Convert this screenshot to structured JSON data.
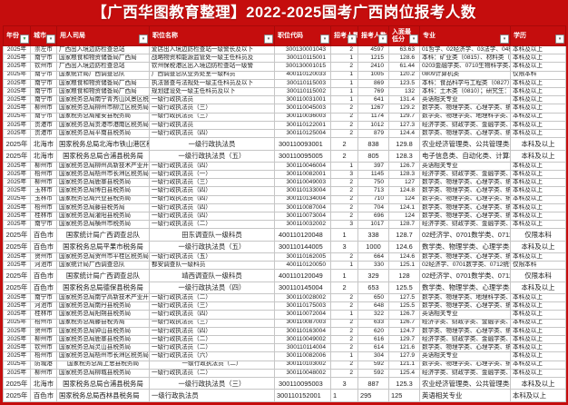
{
  "title": "【广西华图教育整理】2022-2025国考广西岗位报考人数",
  "colors": {
    "accent_red": "#c50d0d",
    "filter_funnel_green": "#2e9e4f",
    "grid_line": "#c6c6c6"
  },
  "table": {
    "columns": [
      {
        "key": "year",
        "label": "年份",
        "filtered": true
      },
      {
        "key": "city",
        "label": "城市",
        "filtered": false
      },
      {
        "key": "dept",
        "label": "用人司局",
        "filtered": false
      },
      {
        "key": "pos",
        "label": "职位名称",
        "filtered": false
      },
      {
        "key": "code",
        "label": "职位代码",
        "filtered": false
      },
      {
        "key": "num",
        "label": "招考人数",
        "filtered": false
      },
      {
        "key": "app",
        "label": "报考人数",
        "filtered": false
      },
      {
        "key": "score",
        "label": "入面最低分",
        "filtered": false
      },
      {
        "key": "major",
        "label": "专业",
        "filtered": false
      },
      {
        "key": "edu",
        "label": "学历",
        "filtered": false
      }
    ],
    "rows": [
      {
        "year": "2025年",
        "city": "崇左市",
        "dept": "广西出入境边防检查总站",
        "pos": "爱店出入境边防检查站一级警长及以下",
        "code": "300130001043",
        "num": "2",
        "app": "4597",
        "score": "63.63",
        "major": "01哲学、02经济学、03法学、04教",
        "edu": "本科及以上",
        "v": "a"
      },
      {
        "year": "2025年",
        "city": "南宁市",
        "dept": "国家粮食和物资储备局广西局",
        "pos": "战略物资和能源监管处一级主任科员及",
        "code": "300110115001",
        "num": "1",
        "app": "1215",
        "score": "128.6",
        "major": "本科：矿业类（0815）、材料类（",
        "edu": "本科及以上",
        "v": "a"
      },
      {
        "year": "2025年",
        "city": "钦州市",
        "dept": "广西出入境边防检查总站",
        "pos": "钦州保税港区出入境边防检查站一级警",
        "code": "300130001015",
        "num": "2",
        "app": "2410",
        "score": "61.44",
        "major": "0203金融学类、0710生物科学类、",
        "edu": "本科及以上",
        "v": "a"
      },
      {
        "year": "2025年",
        "city": "南宁市",
        "dept": "国家统计局广西调查总队",
        "pos": "广西调查总队业务处室一级科员",
        "code": "400110120033",
        "num": "1",
        "app": "1005",
        "score": "120.2",
        "major": "0809计算机类",
        "edu": "仅限本科",
        "v": "a"
      },
      {
        "year": "2025年",
        "city": "南宁市",
        "dept": "国家粮食和物资储备局广西局",
        "pos": "执法督查与法规处一级主任科员及以下",
        "code": "300110115003",
        "num": "1",
        "app": "869",
        "score": "123.5",
        "major": "本科：食品科学与工程类（0827）",
        "edu": "本科及以上",
        "v": "a"
      },
      {
        "year": "2025年",
        "city": "南宁市",
        "dept": "国家粮食和物资储备局广西局",
        "pos": "规划建设处一级主任科员及以下",
        "code": "300110115002",
        "num": "1",
        "app": "769",
        "score": "132",
        "major": "本科：土木类（0810）；研究生：",
        "edu": "本科及以上",
        "v": "a"
      },
      {
        "year": "2025年",
        "city": "南宁市",
        "dept": "国家税务总局南宁青秀山风景区税务局",
        "pos": "一级行政执法员",
        "code": "300110031001",
        "num": "1",
        "app": "641",
        "score": "131.4",
        "major": "英语相关专业",
        "edu": "本科及以上",
        "v": "a"
      },
      {
        "year": "2025年",
        "city": "柳州市",
        "dept": "国家税务总局柳州市柳江区税务局",
        "pos": "一级行政执法员（三）",
        "code": "300110045003",
        "num": "2",
        "app": "1267",
        "score": "129.2",
        "major": "数学类、物理学类、心理学类、统",
        "edu": "本科及以上",
        "v": "a"
      },
      {
        "year": "2025年",
        "city": "南宁市",
        "dept": "国家税务总局隆安县税务局",
        "pos": "一级行政执法员（三）",
        "code": "300110036003",
        "num": "2",
        "app": "1174",
        "score": "129.7",
        "major": "数学类、物理学类、地理科学类、",
        "edu": "本科及以上",
        "v": "a"
      },
      {
        "year": "2025年",
        "city": "贵港市",
        "dept": "国家税务总局贵港市港南区税务局",
        "pos": "一级行政执法员",
        "code": "300110122001",
        "num": "2",
        "app": "1012",
        "score": "127.3",
        "major": "经济学类、财政学类、金融学类、",
        "edu": "本科及以上",
        "v": "a"
      },
      {
        "year": "2025年",
        "city": "贵港市",
        "dept": "国家税务总局平南县税务局",
        "pos": "一级行政执法员（四）",
        "code": "300110125004",
        "num": "2",
        "app": "879",
        "score": "124.4",
        "major": "数学类、物理学类、心理学类、统",
        "edu": "本科及以上",
        "v": "a"
      },
      {
        "year": "2025年",
        "city": "北海市",
        "dept": "国家税务总局北海市铁山港区税务局",
        "pos": "一级行政执法员",
        "code": "300110093001",
        "num": "2",
        "app": "838",
        "score": "129.8",
        "major": "农业经济管理类、公共管理类、图",
        "edu": "本科及以上",
        "v": "b"
      },
      {
        "year": "2025年",
        "city": "北海市",
        "dept": "国家税务总局合浦县税务局",
        "pos": "一级行政执法员（五）",
        "code": "300110095005",
        "num": "2",
        "app": "805",
        "score": "128.3",
        "major": "电子信息类、自动化类、计算机类、",
        "edu": "本科及以上",
        "v": "b"
      },
      {
        "year": "2025年",
        "city": "柳州市",
        "dept": "国家税务总局柳州高新技术产业开发区税务局",
        "pos": "一级行政执法员（四）",
        "code": "300110046004",
        "num": "1",
        "app": "397",
        "score": "126.7",
        "major": "英语相关专业",
        "edu": "本科及以上",
        "v": "a"
      },
      {
        "year": "2025年",
        "city": "梧州市",
        "dept": "国家税务总局梧州市长洲区税务局",
        "pos": "一级行政执法员（一）",
        "code": "300110082001",
        "num": "3",
        "app": "1145",
        "score": "128.3",
        "major": "经济学类、财政学类、金融学类、",
        "edu": "本科及以上",
        "v": "a"
      },
      {
        "year": "2025年",
        "city": "柳州市",
        "dept": "国家税务总局鹿寨县税务局",
        "pos": "一级行政执法员（三）",
        "code": "300110049003",
        "num": "2",
        "app": "750",
        "score": "127",
        "major": "数学类、物理学类、心理学类、统",
        "edu": "本科及以上",
        "v": "a"
      },
      {
        "year": "2025年",
        "city": "玉林市",
        "dept": "国家税务总局博白县税务局",
        "pos": "一级行政执法员（四）",
        "code": "300110133004",
        "num": "2",
        "app": "713",
        "score": "124.8",
        "major": "数学类、物理学类、心理学类、统",
        "edu": "本科及以上",
        "v": "a"
      },
      {
        "year": "2025年",
        "city": "玉林市",
        "dept": "国家税务总局兴业县税务局",
        "pos": "一级行政执法员（四）",
        "code": "300110134004",
        "num": "2",
        "app": "710",
        "score": "124",
        "major": "数学类、物理学类、心理学类、统",
        "edu": "本科及以上",
        "v": "a"
      },
      {
        "year": "2025年",
        "city": "梧州市",
        "dept": "国家税务总局藤县税务局",
        "pos": "一级行政执法员（四）",
        "code": "300110087004",
        "num": "2",
        "app": "704",
        "score": "124.1",
        "major": "数学类、物理学类、心理学类、统",
        "edu": "本科及以上",
        "v": "a"
      },
      {
        "year": "2025年",
        "city": "桂林市",
        "dept": "国家税务总局灌阳县税务局",
        "pos": "一级行政执法员（四）",
        "code": "300110073004",
        "num": "2",
        "app": "696",
        "score": "124",
        "major": "数学类、物理学类、心理学类、统",
        "edu": "本科及以上",
        "v": "a"
      },
      {
        "year": "2025年",
        "city": "南宁市",
        "dept": "国家税务总局横州市税务局",
        "pos": "一级行政执法员（二）",
        "code": "300110032002",
        "num": "3",
        "app": "1017",
        "score": "128.7",
        "major": "经济学类、财政学类、金融学类、",
        "edu": "本科及以上",
        "v": "a"
      },
      {
        "year": "2025年",
        "city": "百色市",
        "dept": "国家统计局广西调查总队",
        "pos": "田东调查队一级科员",
        "code": "400110120048",
        "num": "1",
        "app": "338",
        "score": "128.7",
        "major": "02经济学、0701数学类、0712统计",
        "edu": "仅限本科",
        "v": "b"
      },
      {
        "year": "2025年",
        "city": "百色市",
        "dept": "国家税务总局平果市税务局",
        "pos": "一级行政执法员（五）",
        "code": "300110144005",
        "num": "3",
        "app": "1000",
        "score": "124.6",
        "major": "数学类、物理学类、心理学类、统",
        "edu": "本科及以上",
        "v": "b"
      },
      {
        "year": "2025年",
        "city": "贺州市",
        "dept": "国家税务总局贺州市平桂区税务局",
        "pos": "一级行政执法员（五）",
        "code": "300110162005",
        "num": "2",
        "app": "664",
        "score": "124.6",
        "major": "数学类、物理学类、心理学类、统",
        "edu": "本科及以上",
        "v": "a"
      },
      {
        "year": "2025年",
        "city": "河池市",
        "dept": "国家统计局广西调查总队",
        "pos": "都安调查队一级科员",
        "code": "400110120050",
        "num": "1",
        "app": "330",
        "score": "125.1",
        "major": "02经济学、0701数学类、0712统计",
        "edu": "仅限本科",
        "v": "a"
      },
      {
        "year": "2025年",
        "city": "百色市",
        "dept": "国家统计局广西调查总队",
        "pos": "靖西调查队一级科员",
        "code": "400110120049",
        "num": "1",
        "app": "329",
        "score": "128",
        "major": "02经济学、0701数学类、0712统计",
        "edu": "仅限本科",
        "v": "b"
      },
      {
        "year": "2025年",
        "city": "百色市",
        "dept": "国家税务总局德保县税务局",
        "pos": "一级行政执法员（四）",
        "code": "300110145004",
        "num": "2",
        "app": "653",
        "score": "125.5",
        "major": "数学类、物理学类、心理学类、统",
        "edu": "本科及以上",
        "v": "b"
      },
      {
        "year": "2025年",
        "city": "南宁市",
        "dept": "国家税务总局南宁高新技术产业开发区税务局",
        "pos": "一级行政执法员（二）",
        "code": "300110028002",
        "num": "2",
        "app": "650",
        "score": "127.5",
        "major": "数学类、物理学类、地理科学类、",
        "edu": "本科及以上",
        "v": "a"
      },
      {
        "year": "2025年",
        "city": "河池市",
        "dept": "国家税务总局南丹县税务局",
        "pos": "一级行政执法员（三）",
        "code": "300110175003",
        "num": "2",
        "app": "648",
        "score": "125.5",
        "major": "数学类、物理学类、心理学类、统",
        "edu": "本科及以上",
        "v": "a"
      },
      {
        "year": "2025年",
        "city": "桂林市",
        "dept": "国家税务总局阳朔县税务局",
        "pos": "一级行政执法员（四）",
        "code": "300110072004",
        "num": "1",
        "app": "322",
        "score": "126.7",
        "major": "英语相关专业",
        "edu": "本科及以上",
        "v": "a"
      },
      {
        "year": "2025年",
        "city": "梧州市",
        "dept": "国家税务总局藤县税务局",
        "pos": "一级行政执法员（三）",
        "code": "300110087003",
        "num": "2",
        "app": "633",
        "score": "126.7",
        "major": "经济学类、财政学类、金融学类、",
        "edu": "本科及以上",
        "v": "a"
      },
      {
        "year": "2025年",
        "city": "贺州市",
        "dept": "国家税务总局钟山县税务局",
        "pos": "一级行政执法员（四）",
        "code": "300110163004",
        "num": "2",
        "app": "620",
        "score": "124.7",
        "major": "数学类、物理学类、心理学类、统",
        "edu": "本科及以上",
        "v": "a"
      },
      {
        "year": "2025年",
        "city": "柳州市",
        "dept": "国家税务总局鹿寨县税务局",
        "pos": "一级行政执法员（二）",
        "code": "300110049002",
        "num": "2",
        "app": "616",
        "score": "129.7",
        "major": "经济学类、财政学类、金融学类、",
        "edu": "本科及以上",
        "v": "a"
      },
      {
        "year": "2025年",
        "city": "钦州市",
        "dept": "国家税务总局灵山县税务局",
        "pos": "一级行政执法员（二）",
        "code": "300110114004",
        "num": "2",
        "app": "614",
        "score": "121.6",
        "major": "数学类、物理学类、心理学类、统",
        "edu": "本科及以上",
        "v": "a"
      },
      {
        "year": "2025年",
        "city": "梧州市",
        "dept": "国家税务总局梧州市长洲区税务局",
        "pos": "一级行政执法员（六）",
        "code": "300110082006",
        "num": "1",
        "app": "304",
        "score": "127.9",
        "major": "英语相关专业",
        "edu": "本科及以上",
        "v": "a"
      },
      {
        "year": "2025年",
        "city": "防城港",
        "dept": "国家税务总局上思县税务局",
        "pos": "一级行政执法员（二）",
        "code": "300110103002",
        "num": "2",
        "app": "592",
        "score": "121.1",
        "major": "数学类、物理学类、心理学类、统",
        "edu": "本科及以上",
        "v": "d"
      },
      {
        "year": "2025年",
        "city": "柳州市",
        "dept": "国家税务总局柳城县税务局",
        "pos": "一级行政执法员（二）",
        "code": "300110048002",
        "num": "2",
        "app": "592",
        "score": "125.4",
        "major": "经济学类、财政学类、金融学类、",
        "edu": "本科及以上",
        "v": "a"
      },
      {
        "year": "2025年",
        "city": "北海市",
        "dept": "国家税务总局合浦县税务局",
        "pos": "一级行政执法员（三）",
        "code": "300110095003",
        "num": "3",
        "app": "887",
        "score": "125.3",
        "major": "农业经济管理类、公共管理类、图",
        "edu": "本科及以上",
        "v": "b"
      },
      {
        "year": "2025年",
        "city": "百色市",
        "dept": "国家税务总局西林县税务局",
        "pos": "一级行政执法员",
        "code": "300110152001",
        "num": "1",
        "app": "295",
        "score": "125",
        "major": "英语相关专业",
        "edu": "本科及以上",
        "v": "c"
      }
    ]
  }
}
